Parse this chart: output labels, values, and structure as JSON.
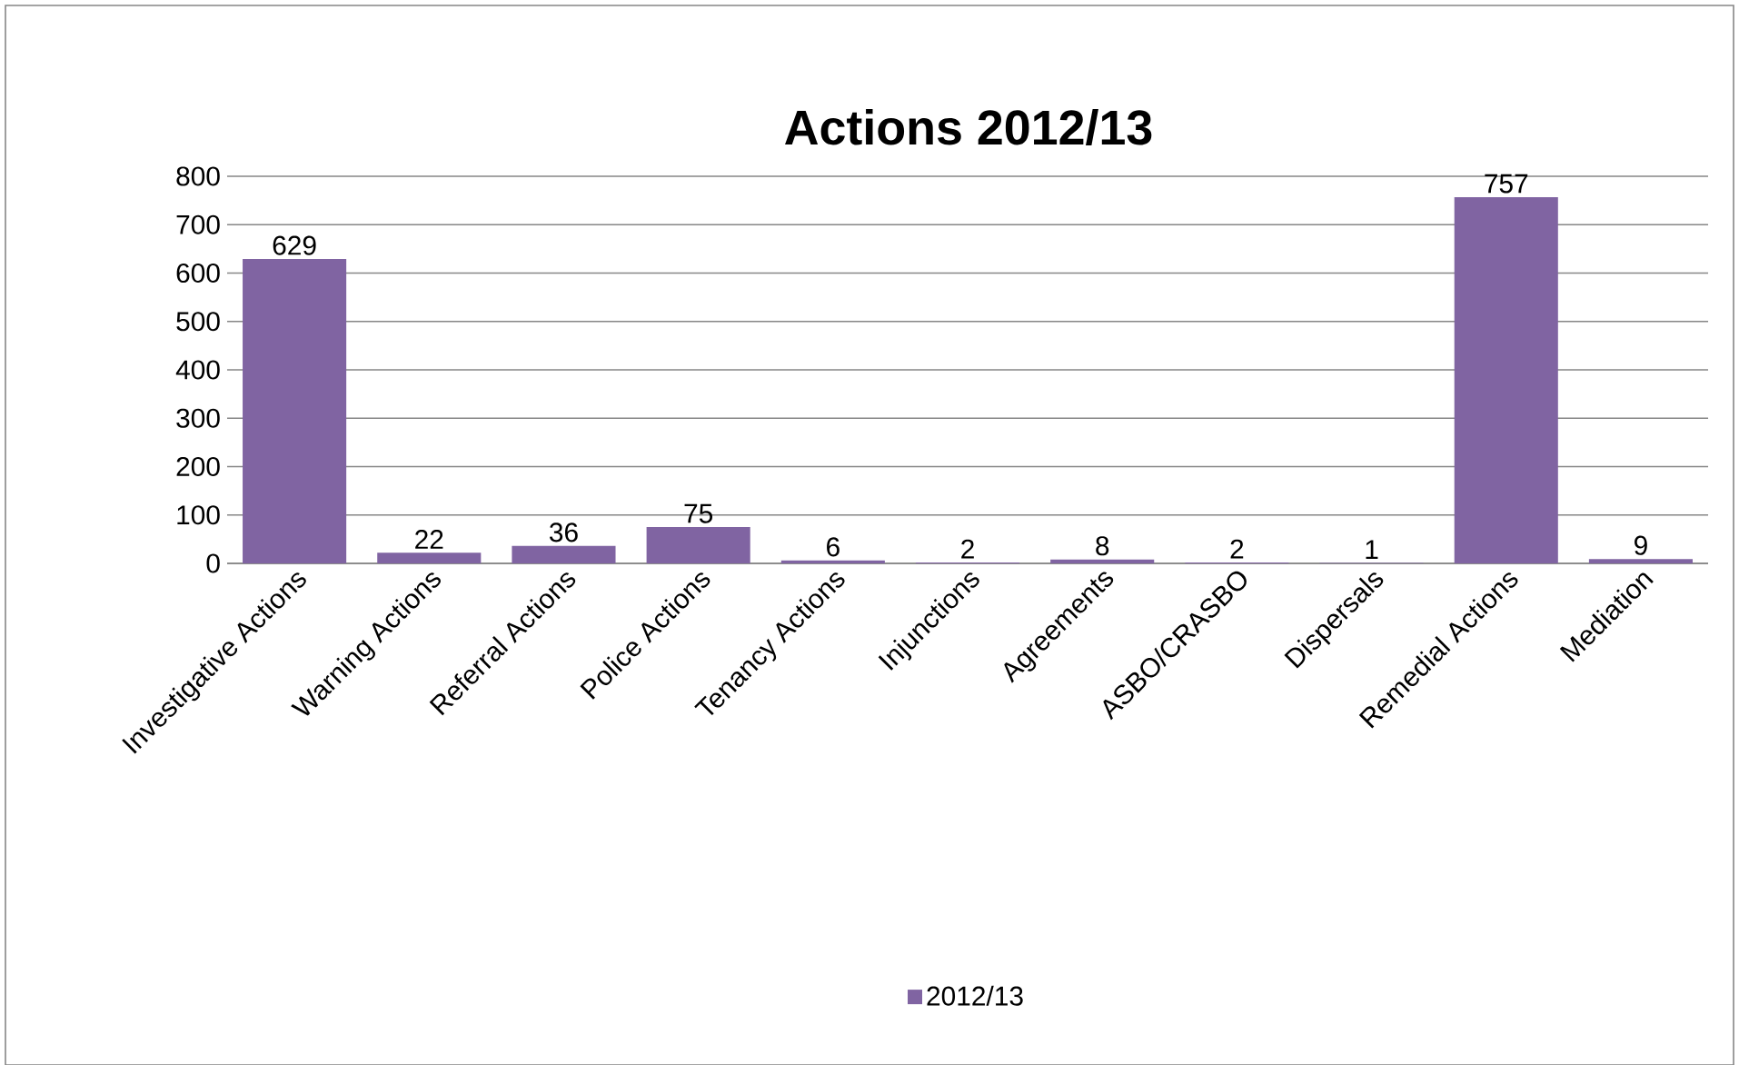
{
  "chart_data": {
    "type": "bar",
    "title": "Actions 2012/13",
    "categories": [
      "Investigative Actions",
      "Warning Actions",
      "Referral Actions",
      "Police Actions",
      "Tenancy Actions",
      "Injunctions",
      "Agreements",
      "ASBO/CRASBO",
      "Dispersals",
      "Remedial Actions",
      "Mediation"
    ],
    "series": [
      {
        "name": "2012/13",
        "color": "#8064a2",
        "values": [
          629,
          22,
          36,
          75,
          6,
          2,
          8,
          2,
          1,
          757,
          9
        ]
      }
    ],
    "ylim": [
      0,
      800
    ],
    "yticks": [
      0,
      100,
      200,
      300,
      400,
      500,
      600,
      700,
      800
    ],
    "grid": "y",
    "legend": "bottom",
    "data_labels": true
  }
}
